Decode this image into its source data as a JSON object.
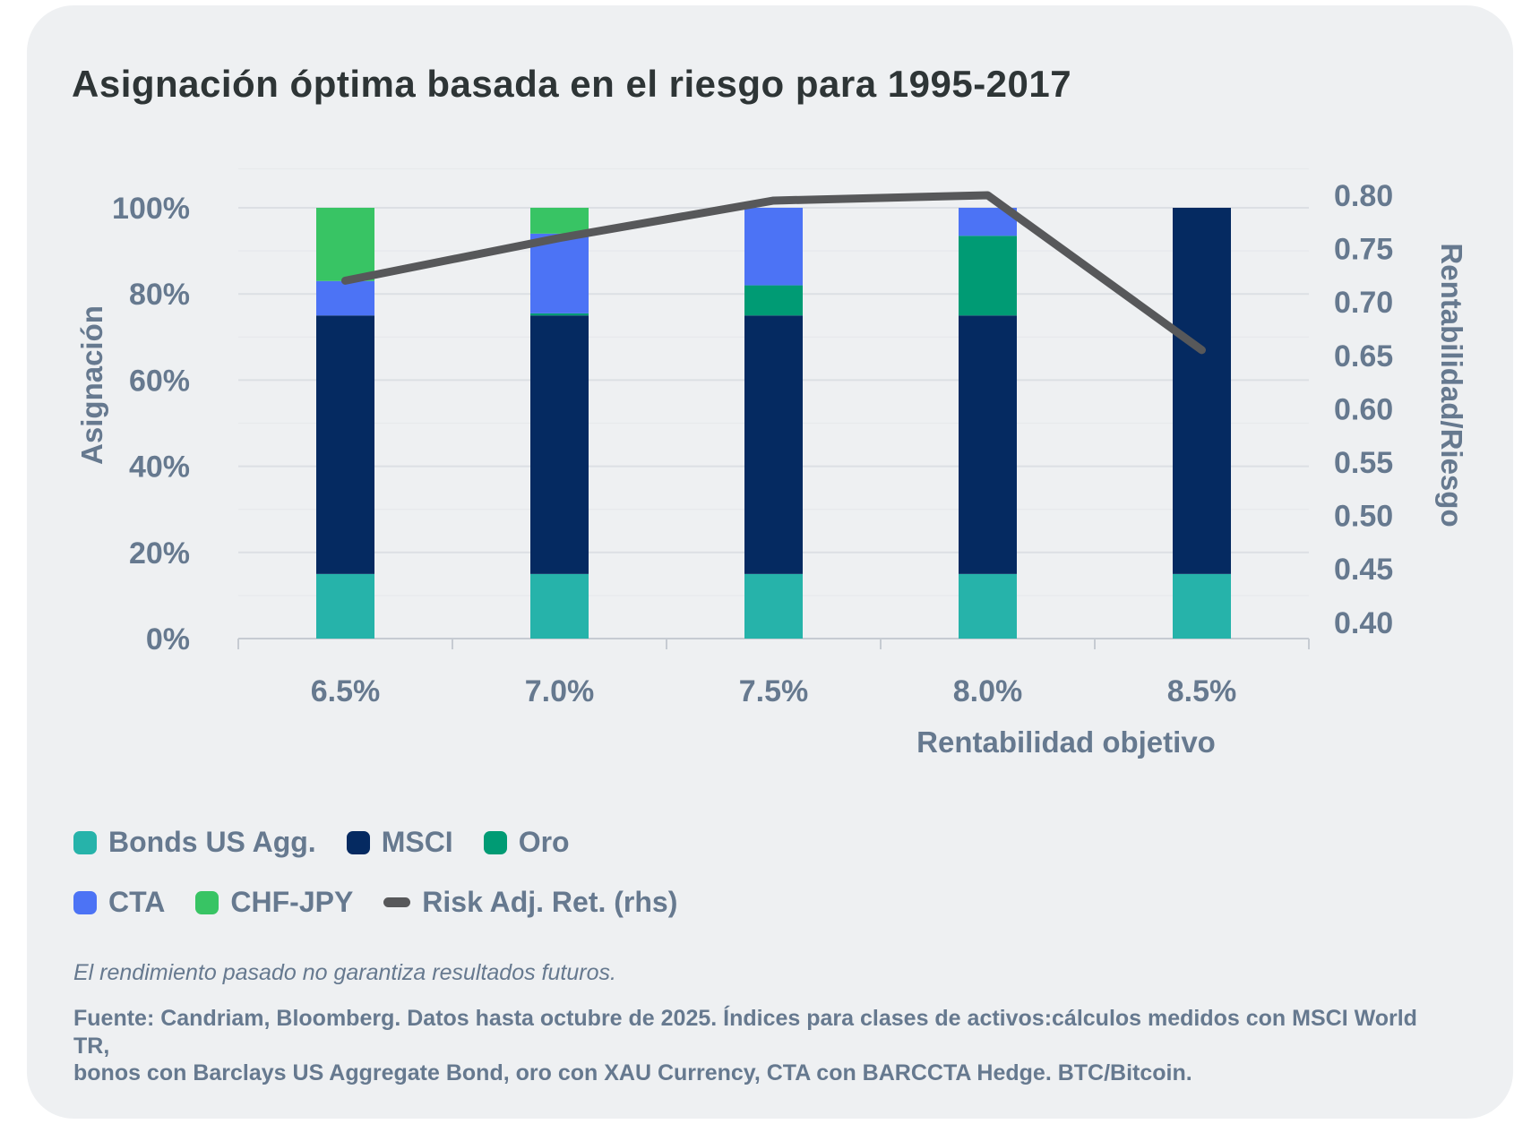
{
  "header": {
    "title": "Asignación óptima basada en el riesgo para 1995-2017"
  },
  "chart_data": {
    "type": "bar",
    "subtype": "stacked-bars-with-line",
    "title": "Asignación óptima basada en el riesgo para 1995-2017",
    "categories": [
      "6.5%",
      "7.0%",
      "7.5%",
      "8.0%",
      "8.5%"
    ],
    "series": [
      {
        "name": "Bonds US Agg.",
        "type": "bar",
        "color": "#26b3aa",
        "values": [
          15,
          15,
          15,
          15,
          15
        ]
      },
      {
        "name": "MSCI",
        "type": "bar",
        "color": "#052a61",
        "values": [
          60,
          60,
          60,
          60,
          85
        ]
      },
      {
        "name": "Oro",
        "type": "bar",
        "color": "#009b74",
        "values": [
          0,
          0.5,
          7,
          18.5,
          0
        ]
      },
      {
        "name": "CTA",
        "type": "bar",
        "color": "#4c73f5",
        "values": [
          8,
          18.5,
          18,
          6.5,
          0
        ]
      },
      {
        "name": "CHF-JPY",
        "type": "bar",
        "color": "#38c464",
        "values": [
          17,
          6,
          0,
          0,
          0
        ]
      }
    ],
    "line_series": {
      "name": "Risk Adj. Ret. (rhs)",
      "color": "#57585a",
      "values": [
        0.72,
        0.76,
        0.795,
        0.8,
        0.655
      ]
    },
    "left_axis": {
      "label": "Asignación",
      "min": 0,
      "max": 100,
      "ticks": [
        "0%",
        "20%",
        "40%",
        "60%",
        "80%",
        "100%"
      ]
    },
    "right_axis": {
      "label": "Rentabilidad/Riesgo",
      "min": 0.4,
      "max": 0.8,
      "ticks": [
        "0.40",
        "0.45",
        "0.50",
        "0.55",
        "0.60",
        "0.65",
        "0.70",
        "0.75",
        "0.80"
      ]
    },
    "x_axis": {
      "label": "Rentabilidad objetivo"
    },
    "grid": true,
    "legend_position": "bottom-left"
  },
  "legend": {
    "rows": [
      [
        {
          "label": "Bonds US Agg.",
          "color": "#26b3aa",
          "marker": "square"
        },
        {
          "label": "MSCI",
          "color": "#052a61",
          "marker": "square"
        },
        {
          "label": "Oro",
          "color": "#009b74",
          "marker": "square"
        }
      ],
      [
        {
          "label": "CTA",
          "color": "#4c73f5",
          "marker": "square"
        },
        {
          "label": "CHF-JPY",
          "color": "#38c464",
          "marker": "square"
        },
        {
          "label": "Risk Adj. Ret. (rhs)",
          "color": "#57585a",
          "marker": "dash"
        }
      ]
    ]
  },
  "footnotes": {
    "disclaimer": "El rendimiento pasado no garantiza resultados futuros.",
    "source_line1": "Fuente: Candriam, Bloomberg. Datos hasta octubre de 2025. Índices para clases de activos:cálculos medidos con MSCI World TR,",
    "source_line2": "bonos con Barclays US Aggregate Bond, oro con XAU Currency, CTA con BARCCTA Hedge. BTC/Bitcoin."
  }
}
